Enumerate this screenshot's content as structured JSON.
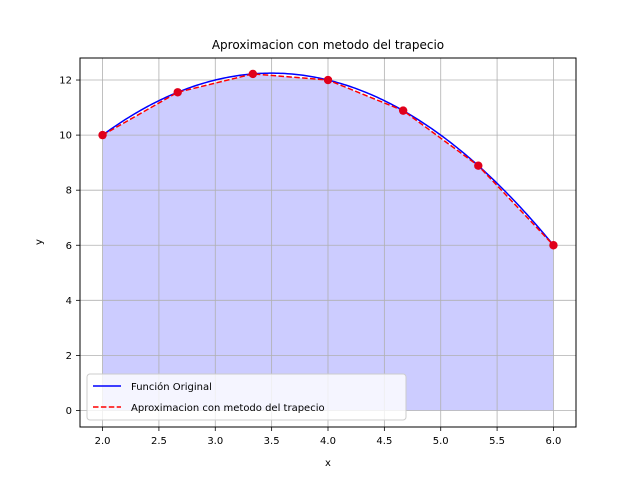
{
  "chart_data": {
    "type": "line",
    "title": "Aproximacion con metodo del trapecio",
    "xlabel": "x",
    "ylabel": "y",
    "xlim": [
      1.8,
      6.2
    ],
    "ylim": [
      -0.6,
      12.8
    ],
    "xticks": [
      "2.0",
      "2.5",
      "3.0",
      "3.5",
      "4.0",
      "4.5",
      "5.0",
      "5.5",
      "6.0"
    ],
    "xtick_values": [
      2.0,
      2.5,
      3.0,
      3.5,
      4.0,
      4.5,
      5.0,
      5.5,
      6.0
    ],
    "yticks": [
      "0",
      "2",
      "4",
      "6",
      "8",
      "10",
      "12"
    ],
    "ytick_values": [
      0,
      2,
      4,
      6,
      8,
      10,
      12
    ],
    "grid": true,
    "legend_position": "lower-left",
    "series": [
      {
        "name": "Función Original",
        "style": "solid",
        "color": "#0000ff",
        "function": "y = -x^2 + 7x",
        "x": [
          2.0,
          2.25,
          2.5,
          2.75,
          3.0,
          3.25,
          3.5,
          3.75,
          4.0,
          4.25,
          4.5,
          4.75,
          5.0,
          5.25,
          5.5,
          5.75,
          6.0
        ],
        "y": [
          10.0,
          10.6875,
          11.25,
          11.6875,
          12.0,
          12.1875,
          12.25,
          12.1875,
          12.0,
          11.6875,
          11.25,
          10.6875,
          10.0,
          9.1875,
          8.25,
          7.1875,
          6.0
        ]
      },
      {
        "name": "Aproximacion con metodo del trapecio",
        "style": "dashed",
        "color": "#ff0000",
        "x": [
          2.0,
          2.6667,
          3.3333,
          4.0,
          4.6667,
          5.3333,
          6.0
        ],
        "y": [
          10.0,
          11.5556,
          12.2222,
          12.0,
          10.8889,
          8.8889,
          6.0
        ]
      }
    ],
    "fill_color": "#0000ff",
    "marker_color": "#e0001b"
  }
}
